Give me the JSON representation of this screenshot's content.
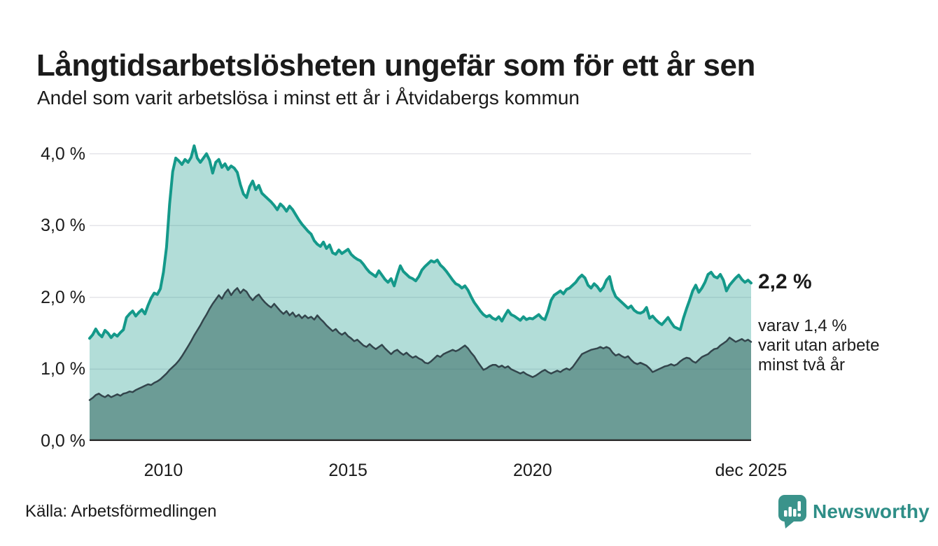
{
  "header": {
    "title": "Långtidsarbetslösheten ungefär som för ett år sen",
    "subtitle": "Andel som varit arbetslösa i minst ett år i Åtvidabergs kommun"
  },
  "chart_data": {
    "type": "area",
    "title": "Långtidsarbetslösheten ungefär som för ett år sen",
    "xlabel": "",
    "ylabel": "",
    "x_start": 2008.0,
    "x_end": 2025.92,
    "ylim": [
      0,
      4.24
    ],
    "grid": "horizontal",
    "y_ticks": [
      0,
      1,
      2,
      3,
      4
    ],
    "y_tick_labels": [
      "0,0 %",
      "1,0 %",
      "2,0 %",
      "3,0 %",
      "4,0 %"
    ],
    "x_ticks": [
      {
        "label": "2010",
        "year": 2010
      },
      {
        "label": "2015",
        "year": 2015
      },
      {
        "label": "2020",
        "year": 2020
      },
      {
        "label": "dec 2025",
        "year": 2025.92
      }
    ],
    "series": [
      {
        "name": "Arbetslösa minst ett år",
        "line_color": "#14998a",
        "fill_color": "rgba(20,153,138,0.33)",
        "line_width": 4,
        "values": [
          1.43,
          1.48,
          1.56,
          1.49,
          1.45,
          1.54,
          1.5,
          1.44,
          1.49,
          1.46,
          1.51,
          1.55,
          1.72,
          1.77,
          1.81,
          1.74,
          1.79,
          1.83,
          1.77,
          1.89,
          1.99,
          2.06,
          2.04,
          2.12,
          2.35,
          2.7,
          3.3,
          3.75,
          3.94,
          3.9,
          3.85,
          3.92,
          3.88,
          3.95,
          4.11,
          3.94,
          3.88,
          3.94,
          4.0,
          3.91,
          3.73,
          3.88,
          3.92,
          3.81,
          3.86,
          3.78,
          3.83,
          3.8,
          3.74,
          3.57,
          3.44,
          3.39,
          3.54,
          3.62,
          3.5,
          3.56,
          3.45,
          3.41,
          3.37,
          3.33,
          3.28,
          3.22,
          3.3,
          3.26,
          3.2,
          3.27,
          3.22,
          3.15,
          3.08,
          3.02,
          2.97,
          2.92,
          2.88,
          2.79,
          2.74,
          2.71,
          2.77,
          2.68,
          2.73,
          2.62,
          2.6,
          2.66,
          2.61,
          2.64,
          2.67,
          2.6,
          2.56,
          2.53,
          2.51,
          2.46,
          2.4,
          2.35,
          2.32,
          2.29,
          2.37,
          2.31,
          2.25,
          2.21,
          2.26,
          2.16,
          2.31,
          2.44,
          2.36,
          2.32,
          2.28,
          2.26,
          2.23,
          2.29,
          2.38,
          2.43,
          2.47,
          2.51,
          2.49,
          2.52,
          2.45,
          2.41,
          2.36,
          2.3,
          2.24,
          2.19,
          2.17,
          2.13,
          2.16,
          2.1,
          2.01,
          1.93,
          1.87,
          1.81,
          1.76,
          1.73,
          1.75,
          1.71,
          1.69,
          1.73,
          1.67,
          1.75,
          1.82,
          1.76,
          1.74,
          1.71,
          1.68,
          1.73,
          1.69,
          1.71,
          1.7,
          1.73,
          1.76,
          1.71,
          1.69,
          1.81,
          1.96,
          2.03,
          2.06,
          2.09,
          2.05,
          2.11,
          2.13,
          2.17,
          2.21,
          2.27,
          2.31,
          2.27,
          2.17,
          2.13,
          2.19,
          2.15,
          2.09,
          2.14,
          2.24,
          2.29,
          2.11,
          2.01,
          1.97,
          1.93,
          1.89,
          1.85,
          1.88,
          1.82,
          1.79,
          1.78,
          1.8,
          1.86,
          1.71,
          1.74,
          1.69,
          1.65,
          1.62,
          1.67,
          1.72,
          1.65,
          1.59,
          1.57,
          1.55,
          1.71,
          1.84,
          1.96,
          2.09,
          2.17,
          2.07,
          2.13,
          2.21,
          2.32,
          2.35,
          2.29,
          2.27,
          2.32,
          2.24,
          2.09,
          2.17,
          2.22,
          2.27,
          2.31,
          2.25,
          2.21,
          2.24,
          2.2
        ]
      },
      {
        "name": "varav arbetslösa minst två år",
        "line_color": "#33454c",
        "fill_color": "rgba(45,95,90,0.52)",
        "line_width": 2.5,
        "values": [
          0.57,
          0.6,
          0.64,
          0.66,
          0.63,
          0.61,
          0.64,
          0.61,
          0.63,
          0.65,
          0.63,
          0.66,
          0.67,
          0.69,
          0.68,
          0.71,
          0.73,
          0.75,
          0.77,
          0.79,
          0.78,
          0.81,
          0.83,
          0.86,
          0.9,
          0.94,
          0.99,
          1.03,
          1.07,
          1.12,
          1.18,
          1.25,
          1.32,
          1.39,
          1.47,
          1.54,
          1.61,
          1.69,
          1.76,
          1.84,
          1.91,
          1.97,
          2.03,
          1.98,
          2.06,
          2.11,
          2.03,
          2.09,
          2.13,
          2.06,
          2.11,
          2.08,
          2.01,
          1.96,
          2.01,
          2.04,
          1.98,
          1.93,
          1.89,
          1.86,
          1.91,
          1.86,
          1.81,
          1.77,
          1.81,
          1.75,
          1.79,
          1.73,
          1.76,
          1.71,
          1.75,
          1.71,
          1.73,
          1.69,
          1.75,
          1.7,
          1.66,
          1.61,
          1.57,
          1.53,
          1.56,
          1.51,
          1.48,
          1.51,
          1.46,
          1.43,
          1.39,
          1.41,
          1.37,
          1.33,
          1.31,
          1.35,
          1.31,
          1.28,
          1.31,
          1.34,
          1.29,
          1.25,
          1.21,
          1.25,
          1.27,
          1.23,
          1.2,
          1.23,
          1.19,
          1.16,
          1.18,
          1.15,
          1.13,
          1.09,
          1.08,
          1.11,
          1.15,
          1.19,
          1.17,
          1.21,
          1.23,
          1.25,
          1.27,
          1.25,
          1.27,
          1.3,
          1.33,
          1.29,
          1.23,
          1.18,
          1.11,
          1.05,
          0.99,
          1.01,
          1.04,
          1.06,
          1.06,
          1.03,
          1.05,
          1.02,
          1.04,
          1.0,
          0.98,
          0.96,
          0.94,
          0.96,
          0.93,
          0.91,
          0.89,
          0.91,
          0.94,
          0.97,
          0.99,
          0.96,
          0.94,
          0.96,
          0.98,
          0.96,
          0.99,
          1.01,
          0.99,
          1.03,
          1.09,
          1.15,
          1.21,
          1.23,
          1.25,
          1.27,
          1.28,
          1.29,
          1.31,
          1.29,
          1.31,
          1.29,
          1.23,
          1.19,
          1.21,
          1.18,
          1.16,
          1.18,
          1.13,
          1.09,
          1.07,
          1.09,
          1.07,
          1.05,
          1.01,
          0.96,
          0.98,
          1.0,
          1.02,
          1.04,
          1.05,
          1.07,
          1.05,
          1.07,
          1.11,
          1.14,
          1.16,
          1.15,
          1.11,
          1.09,
          1.13,
          1.17,
          1.19,
          1.21,
          1.25,
          1.28,
          1.29,
          1.33,
          1.36,
          1.39,
          1.44,
          1.41,
          1.38,
          1.4,
          1.42,
          1.39,
          1.41,
          1.38
        ]
      }
    ],
    "annotations": {
      "latest_value": "2,2 %",
      "detail_lines": [
        "varav 1,4 %",
        "varit utan arbete",
        "minst två år"
      ]
    },
    "colors": {
      "gridline": "#e4e4e9",
      "baseline": "#2b2b2b",
      "text": "#1b1b1b"
    }
  },
  "footer": {
    "source": "Källa: Arbetsförmedlingen",
    "brand": "Newsworthy",
    "brand_color": "#2e8e87"
  }
}
